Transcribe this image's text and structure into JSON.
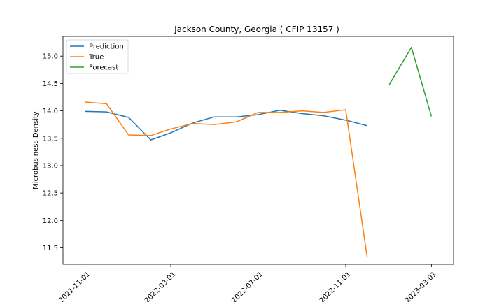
{
  "chart_data": {
    "type": "line",
    "title": "Jackson County, Georgia ( CFIP 13157 )",
    "xlabel": "",
    "ylabel": "Microbusiness Density",
    "x_ticks": [
      "2021-11-01",
      "2022-03-01",
      "2022-07-01",
      "2022-11-01",
      "2023-03-01"
    ],
    "y_ticks": [
      "11.5",
      "12.0",
      "12.5",
      "13.0",
      "13.5",
      "14.0",
      "14.5",
      "15.0"
    ],
    "ylim": [
      11.2,
      15.36
    ],
    "xlim": [
      "2021-10-01",
      "2023-04-01"
    ],
    "legend_position": "top-left",
    "grid": false,
    "series": [
      {
        "name": "Prediction",
        "color": "#1f77b4",
        "x": [
          "2021-11-01",
          "2021-12-01",
          "2022-01-01",
          "2022-02-01",
          "2022-03-01",
          "2022-04-01",
          "2022-05-01",
          "2022-06-01",
          "2022-07-01",
          "2022-08-01",
          "2022-09-01",
          "2022-10-01",
          "2022-11-01",
          "2022-12-01"
        ],
        "values": [
          13.99,
          13.98,
          13.88,
          13.47,
          13.6,
          13.78,
          13.89,
          13.89,
          13.93,
          14.01,
          13.95,
          13.91,
          13.83,
          13.73
        ]
      },
      {
        "name": "True",
        "color": "#ff7f0e",
        "x": [
          "2021-11-01",
          "2021-12-01",
          "2022-01-01",
          "2022-02-01",
          "2022-03-01",
          "2022-04-01",
          "2022-05-01",
          "2022-06-01",
          "2022-07-01",
          "2022-08-01",
          "2022-09-01",
          "2022-10-01",
          "2022-11-01",
          "2022-12-01"
        ],
        "values": [
          14.16,
          14.13,
          13.56,
          13.55,
          13.67,
          13.77,
          13.75,
          13.8,
          13.97,
          13.97,
          14.0,
          13.97,
          14.02,
          11.33
        ]
      },
      {
        "name": "Forecast",
        "color": "#2ca02c",
        "x": [
          "2023-01-01",
          "2023-02-01",
          "2023-03-01"
        ],
        "values": [
          14.48,
          15.16,
          13.9
        ]
      }
    ]
  }
}
